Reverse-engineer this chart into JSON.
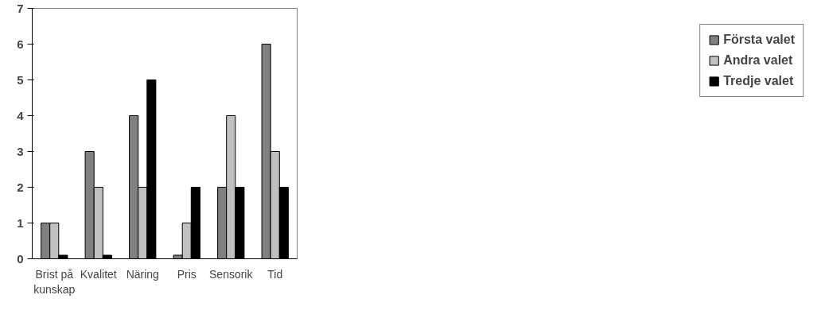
{
  "chart_data": {
    "type": "bar",
    "categories": [
      "Brist på\nkunskap",
      "Kvalitet",
      "Näring",
      "Pris",
      "Sensorik",
      "Tid"
    ],
    "series": [
      {
        "name": "Första valet",
        "color": "#808080",
        "values": [
          1,
          3,
          4,
          0.1,
          2,
          6
        ]
      },
      {
        "name": "Andra valet",
        "color": "#c0c0c0",
        "values": [
          1,
          2,
          2,
          1,
          4,
          3
        ]
      },
      {
        "name": "Tredje valet",
        "color": "#000000",
        "values": [
          0.1,
          0.1,
          5,
          2,
          2,
          2
        ]
      }
    ],
    "ylim": [
      0,
      7
    ],
    "yticks": [
      0,
      1,
      2,
      3,
      4,
      5,
      6,
      7
    ],
    "grid": false,
    "legend": "right"
  }
}
